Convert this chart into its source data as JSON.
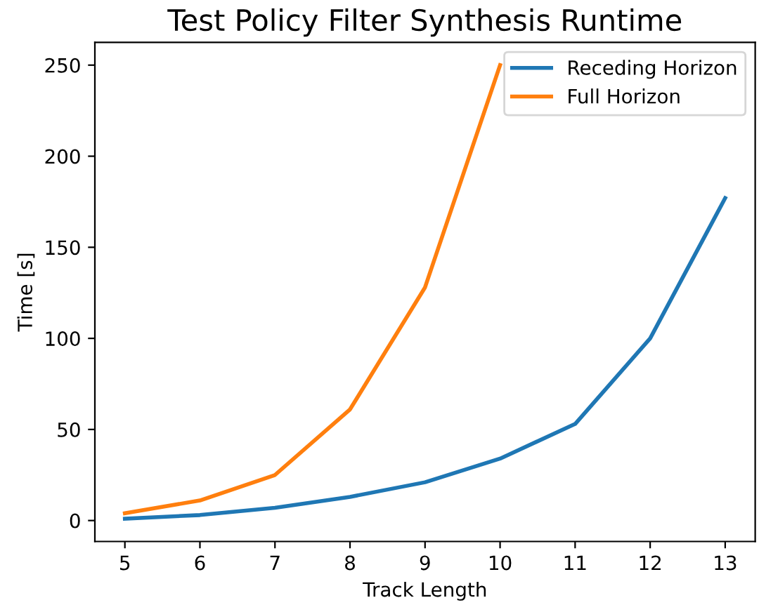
{
  "chart_data": {
    "type": "line",
    "title": "Test Policy Filter Synthesis Runtime",
    "xlabel": "Track Length",
    "ylabel": "Time [s]",
    "series": [
      {
        "name": "Receding Horizon",
        "color": "#1f77b4",
        "x": [
          5,
          6,
          7,
          8,
          9,
          10,
          11,
          12,
          13
        ],
        "values": [
          1,
          3,
          7,
          13,
          21,
          34,
          53,
          100,
          177
        ]
      },
      {
        "name": "Full Horizon",
        "color": "#ff7f0e",
        "x": [
          5,
          6,
          7,
          8,
          9,
          10
        ],
        "values": [
          4,
          11,
          25,
          61,
          128,
          250
        ]
      }
    ],
    "xlim": [
      4.6,
      13.4
    ],
    "xticks": [
      5,
      6,
      7,
      8,
      9,
      10,
      11,
      12,
      13
    ],
    "ylim": [
      -11.5,
      262.5
    ],
    "yticks": [
      0,
      50,
      100,
      150,
      200,
      250
    ],
    "legend": "top right",
    "grid": false,
    "marker": "none",
    "line_style": "solid"
  }
}
